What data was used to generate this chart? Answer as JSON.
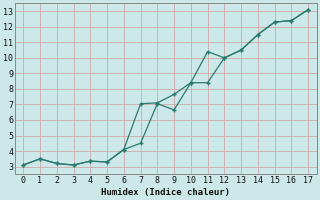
{
  "xlabel": "Humidex (Indice chaleur)",
  "background_color": "#cce8e8",
  "grid_color": "#aacccc",
  "line_color": "#2a7a6f",
  "xlim": [
    -0.5,
    17.5
  ],
  "ylim": [
    2.5,
    13.5
  ],
  "xticks": [
    0,
    1,
    2,
    3,
    4,
    5,
    6,
    7,
    8,
    9,
    10,
    11,
    12,
    13,
    14,
    15,
    16,
    17
  ],
  "yticks": [
    3,
    4,
    5,
    6,
    7,
    8,
    9,
    10,
    11,
    12,
    13
  ],
  "line1_x": [
    0,
    1,
    2,
    3,
    4,
    5,
    6,
    7,
    8,
    9,
    10,
    11,
    12,
    13,
    14,
    15,
    16,
    17
  ],
  "line1_y": [
    3.1,
    3.5,
    3.2,
    3.1,
    3.35,
    3.3,
    4.1,
    4.5,
    7.05,
    6.65,
    8.4,
    8.4,
    10.0,
    10.5,
    11.5,
    12.3,
    12.4,
    13.1
  ],
  "line2_x": [
    0,
    1,
    2,
    3,
    4,
    5,
    6,
    7,
    8,
    9,
    10,
    11,
    12,
    13,
    14,
    15,
    16,
    17
  ],
  "line2_y": [
    3.1,
    3.5,
    3.2,
    3.1,
    3.35,
    3.3,
    4.1,
    7.05,
    7.1,
    7.65,
    8.4,
    10.4,
    10.0,
    10.5,
    11.5,
    12.3,
    12.4,
    13.1
  ]
}
